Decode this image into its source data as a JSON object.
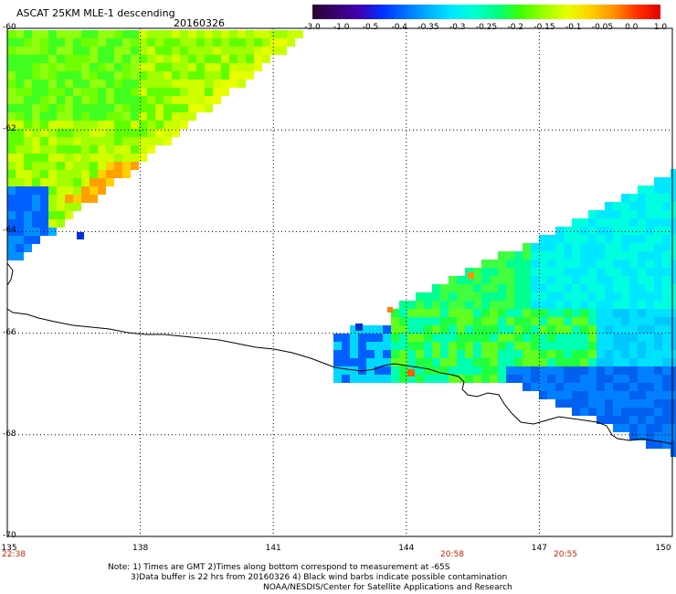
{
  "header": {
    "title": "ASCAT 25KM MLE-1 descending",
    "date": "20160326"
  },
  "colorbar": {
    "colors": [
      "#2a0030",
      "#3a0070",
      "#4000b0",
      "#0030ff",
      "#0070ff",
      "#00b0ff",
      "#00e8ff",
      "#00ffd0",
      "#00ff80",
      "#40ff00",
      "#a0ff00",
      "#e8ff00",
      "#ffd000",
      "#ff9000",
      "#ff3000",
      "#e00000"
    ],
    "labels": [
      "-3.0",
      "-1.0",
      "-0.5",
      "-0.4",
      "-0.35",
      "-0.3",
      "-0.25",
      "-0.2",
      "-0.15",
      "-0.1",
      "-0.05",
      "0.0",
      "1.0"
    ]
  },
  "axes": {
    "lat_labels": [
      "-60",
      "-62",
      "-64",
      "-66",
      "-68",
      "-70"
    ],
    "lat_values": [
      -60,
      -62,
      -64,
      -66,
      -68,
      -70
    ],
    "lon_labels": [
      "135",
      "138",
      "141",
      "144",
      "147",
      "150"
    ],
    "lon_values": [
      135,
      138,
      141,
      144,
      147,
      150
    ],
    "lat_range": [
      -70,
      -60
    ],
    "lon_range": [
      135,
      150
    ]
  },
  "time_labels": [
    "22:38",
    "20:58",
    "20:55"
  ],
  "notes": [
    "Note: 1) Times are GMT 2)Times along bottom correspond to measurement at -65S",
    "3)Data buffer is 22 hrs from 20160326 4) Black wind barbs indicate possible contamination",
    "NOAA/NESDIS/Center for Satellite Applications and Research"
  ]
}
